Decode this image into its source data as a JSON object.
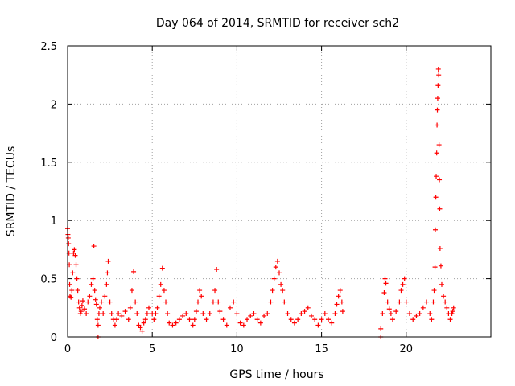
{
  "chart_data": {
    "type": "scatter",
    "title": "Day 064 of 2014, SRMTID for receiver sch2",
    "xlabel": "GPS time / hours",
    "ylabel": "SRMTID / TECUs",
    "xlim": [
      0,
      25
    ],
    "ylim": [
      0,
      2.5
    ],
    "grid": true,
    "x_ticks": [
      0,
      5,
      10,
      15,
      20
    ],
    "x_tick_labels": [
      "0",
      "5",
      "10",
      "15",
      "20"
    ],
    "y_ticks": [
      0,
      0.5,
      1,
      1.5,
      2,
      2.5
    ],
    "y_tick_labels": [
      "0",
      "0.5",
      "1",
      "1.5",
      "2",
      "2.5"
    ],
    "marker": "+",
    "series": [
      {
        "name": "SRMTID",
        "color": "#ff0000",
        "points": [
          [
            0.0,
            0.93
          ],
          [
            0.02,
            0.88
          ],
          [
            0.04,
            0.85
          ],
          [
            0.06,
            0.8
          ],
          [
            0.08,
            0.72
          ],
          [
            0.1,
            0.62
          ],
          [
            0.12,
            0.45
          ],
          [
            0.14,
            0.35
          ],
          [
            0.2,
            0.34
          ],
          [
            0.25,
            0.4
          ],
          [
            0.3,
            0.55
          ],
          [
            0.35,
            0.72
          ],
          [
            0.4,
            0.75
          ],
          [
            0.45,
            0.7
          ],
          [
            0.5,
            0.62
          ],
          [
            0.55,
            0.5
          ],
          [
            0.6,
            0.4
          ],
          [
            0.65,
            0.3
          ],
          [
            0.7,
            0.25
          ],
          [
            0.75,
            0.2
          ],
          [
            0.8,
            0.22
          ],
          [
            0.85,
            0.27
          ],
          [
            0.9,
            0.31
          ],
          [
            1.0,
            0.24
          ],
          [
            1.1,
            0.2
          ],
          [
            1.2,
            0.3
          ],
          [
            1.3,
            0.35
          ],
          [
            1.4,
            0.45
          ],
          [
            1.5,
            0.5
          ],
          [
            1.55,
            0.78
          ],
          [
            1.6,
            0.4
          ],
          [
            1.65,
            0.32
          ],
          [
            1.7,
            0.28
          ],
          [
            1.75,
            0.15
          ],
          [
            1.8,
            0.1
          ],
          [
            1.85,
            0.2
          ],
          [
            1.9,
            0.25
          ],
          [
            2.0,
            0.3
          ],
          [
            2.1,
            0.2
          ],
          [
            2.2,
            0.35
          ],
          [
            2.3,
            0.45
          ],
          [
            2.35,
            0.55
          ],
          [
            2.4,
            0.65
          ],
          [
            2.5,
            0.3
          ],
          [
            2.6,
            0.2
          ],
          [
            2.7,
            0.15
          ],
          [
            2.8,
            0.1
          ],
          [
            2.9,
            0.15
          ],
          [
            3.0,
            0.2
          ],
          [
            3.2,
            0.18
          ],
          [
            3.4,
            0.22
          ],
          [
            3.6,
            0.15
          ],
          [
            3.7,
            0.25
          ],
          [
            3.8,
            0.4
          ],
          [
            3.9,
            0.56
          ],
          [
            4.0,
            0.3
          ],
          [
            4.1,
            0.2
          ],
          [
            4.2,
            0.1
          ],
          [
            4.3,
            0.08
          ],
          [
            4.4,
            0.05
          ],
          [
            4.5,
            0.12
          ],
          [
            4.6,
            0.15
          ],
          [
            4.7,
            0.2
          ],
          [
            4.8,
            0.25
          ],
          [
            5.0,
            0.2
          ],
          [
            5.1,
            0.15
          ],
          [
            5.2,
            0.2
          ],
          [
            5.3,
            0.25
          ],
          [
            5.4,
            0.35
          ],
          [
            5.5,
            0.45
          ],
          [
            5.6,
            0.59
          ],
          [
            5.7,
            0.4
          ],
          [
            5.8,
            0.3
          ],
          [
            5.9,
            0.2
          ],
          [
            6.0,
            0.12
          ],
          [
            6.2,
            0.1
          ],
          [
            6.4,
            0.12
          ],
          [
            6.6,
            0.15
          ],
          [
            6.8,
            0.18
          ],
          [
            7.0,
            0.2
          ],
          [
            7.2,
            0.15
          ],
          [
            7.4,
            0.1
          ],
          [
            7.5,
            0.15
          ],
          [
            7.6,
            0.22
          ],
          [
            7.7,
            0.3
          ],
          [
            7.8,
            0.4
          ],
          [
            7.9,
            0.35
          ],
          [
            8.0,
            0.2
          ],
          [
            8.2,
            0.15
          ],
          [
            8.4,
            0.2
          ],
          [
            8.6,
            0.3
          ],
          [
            8.7,
            0.4
          ],
          [
            8.8,
            0.58
          ],
          [
            8.9,
            0.3
          ],
          [
            9.0,
            0.22
          ],
          [
            9.2,
            0.15
          ],
          [
            9.4,
            0.1
          ],
          [
            9.6,
            0.25
          ],
          [
            9.8,
            0.3
          ],
          [
            10.0,
            0.2
          ],
          [
            10.2,
            0.12
          ],
          [
            10.4,
            0.1
          ],
          [
            10.6,
            0.15
          ],
          [
            10.8,
            0.18
          ],
          [
            11.0,
            0.2
          ],
          [
            11.2,
            0.15
          ],
          [
            11.4,
            0.12
          ],
          [
            11.6,
            0.18
          ],
          [
            11.8,
            0.2
          ],
          [
            12.0,
            0.3
          ],
          [
            12.1,
            0.4
          ],
          [
            12.2,
            0.5
          ],
          [
            12.3,
            0.6
          ],
          [
            12.4,
            0.65
          ],
          [
            12.5,
            0.55
          ],
          [
            12.6,
            0.45
          ],
          [
            12.7,
            0.4
          ],
          [
            12.8,
            0.3
          ],
          [
            13.0,
            0.2
          ],
          [
            13.2,
            0.15
          ],
          [
            13.4,
            0.12
          ],
          [
            13.6,
            0.15
          ],
          [
            13.8,
            0.2
          ],
          [
            14.0,
            0.22
          ],
          [
            14.2,
            0.25
          ],
          [
            14.4,
            0.18
          ],
          [
            14.6,
            0.15
          ],
          [
            14.8,
            0.1
          ],
          [
            15.0,
            0.15
          ],
          [
            15.2,
            0.2
          ],
          [
            15.4,
            0.15
          ],
          [
            15.6,
            0.12
          ],
          [
            15.8,
            0.2
          ],
          [
            15.9,
            0.28
          ],
          [
            16.0,
            0.35
          ],
          [
            16.1,
            0.4
          ],
          [
            16.2,
            0.3
          ],
          [
            16.25,
            0.22
          ],
          [
            1.8,
            0.0
          ],
          [
            18.5,
            0.0
          ],
          [
            18.5,
            0.07
          ],
          [
            18.6,
            0.2
          ],
          [
            18.7,
            0.38
          ],
          [
            18.75,
            0.5
          ],
          [
            18.8,
            0.46
          ],
          [
            18.9,
            0.3
          ],
          [
            19.0,
            0.24
          ],
          [
            19.1,
            0.2
          ],
          [
            19.2,
            0.15
          ],
          [
            19.4,
            0.22
          ],
          [
            19.6,
            0.3
          ],
          [
            19.7,
            0.4
          ],
          [
            19.8,
            0.45
          ],
          [
            19.9,
            0.5
          ],
          [
            20.0,
            0.3
          ],
          [
            20.2,
            0.2
          ],
          [
            20.4,
            0.15
          ],
          [
            20.6,
            0.18
          ],
          [
            20.8,
            0.2
          ],
          [
            21.0,
            0.25
          ],
          [
            21.2,
            0.3
          ],
          [
            21.4,
            0.2
          ],
          [
            21.5,
            0.15
          ],
          [
            21.6,
            0.3
          ],
          [
            21.65,
            0.4
          ],
          [
            21.7,
            0.6
          ],
          [
            21.72,
            0.92
          ],
          [
            21.75,
            1.2
          ],
          [
            21.77,
            1.38
          ],
          [
            21.8,
            1.58
          ],
          [
            21.82,
            1.82
          ],
          [
            21.84,
            1.95
          ],
          [
            21.86,
            2.05
          ],
          [
            21.88,
            2.16
          ],
          [
            21.9,
            2.3
          ],
          [
            21.92,
            2.25
          ],
          [
            21.94,
            1.65
          ],
          [
            21.96,
            1.35
          ],
          [
            21.98,
            1.1
          ],
          [
            22.0,
            0.76
          ],
          [
            22.05,
            0.61
          ],
          [
            22.1,
            0.45
          ],
          [
            22.2,
            0.35
          ],
          [
            22.3,
            0.3
          ],
          [
            22.4,
            0.25
          ],
          [
            22.5,
            0.2
          ],
          [
            22.6,
            0.15
          ],
          [
            22.7,
            0.2
          ],
          [
            22.75,
            0.22
          ],
          [
            22.8,
            0.25
          ]
        ]
      }
    ]
  }
}
